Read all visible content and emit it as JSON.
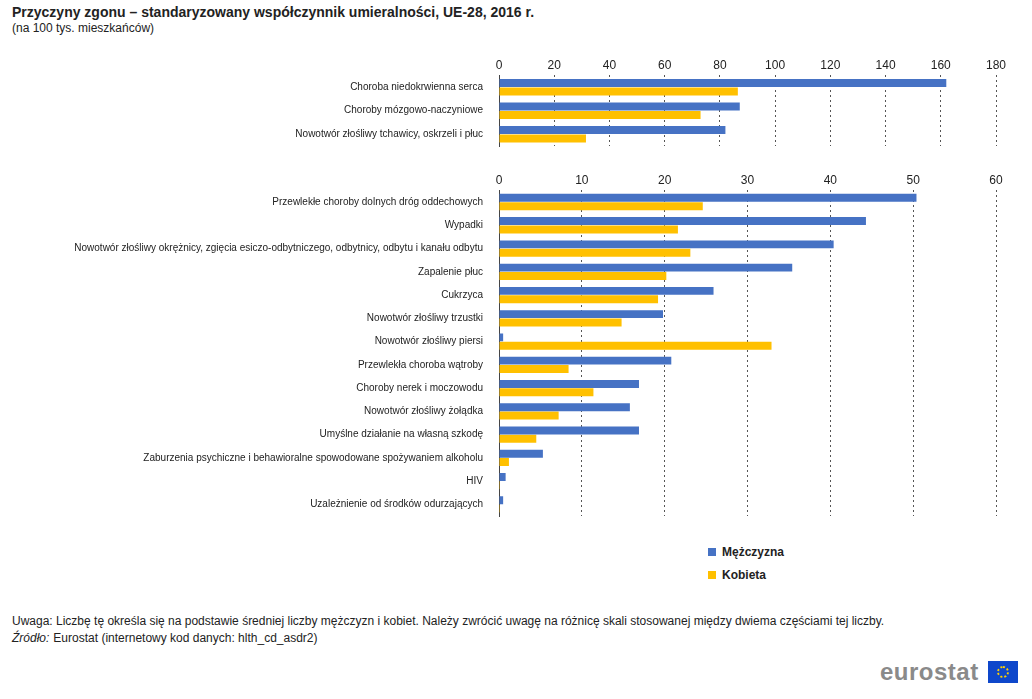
{
  "title": "Przyczyny zgonu – standaryzowany współczynnik umieralności, UE-28, 2016 r.",
  "subtitle": "(na 100 tys. mieszkańców)",
  "note": "Uwaga: Liczbę tę określa się na podstawie średniej liczby mężczyzn i kobiet. Należy zwrócić uwagę na różnicę skali stosowanej między dwiema częściami tej liczby.",
  "source_label": "Źródło:",
  "source": "Eurostat (internetowy kod danych: hlth_cd_asdr2)",
  "logo": "eurostat",
  "chart_data": [
    {
      "type": "bar",
      "orientation": "horizontal",
      "grid": true,
      "categories": [
        "Choroba niedokrwienna serca",
        "Choroby mózgowo-naczyniowe",
        "Nowotwór złośliwy tchawicy, oskrzeli i płuc"
      ],
      "series": [
        {
          "name": "Mężczyzna",
          "color": "#4672c4",
          "values": [
            162,
            87.2,
            82
          ]
        },
        {
          "name": "Kobieta",
          "color": "#ffc000",
          "values": [
            86.5,
            73,
            31.5
          ]
        }
      ],
      "xlim": [
        0,
        180
      ],
      "xticks": [
        0,
        20,
        40,
        60,
        80,
        100,
        120,
        140,
        160,
        180
      ]
    },
    {
      "type": "bar",
      "orientation": "horizontal",
      "grid": true,
      "legend": "bottom",
      "categories": [
        "Przewlekłe choroby dolnych dróg oddechowych",
        "Wypadki",
        "Nowotwór złośliwy okrężnicy, zgięcia esiczo-odbytniczego, odbytnicy, odbytu i kanału odbytu",
        "Zapalenie płuc",
        "Cukrzyca",
        "Nowotwór złośliwy trzustki",
        "Nowotwór złośliwy piersi",
        "Przewlekła choroba wątroby",
        "Choroby nerek i moczowodu",
        "Nowotwór złośliwy żołądka",
        "Umyślne działanie na własną szkodę",
        "Zaburzenia psychiczne i behawioralne spowodowane spożywaniem alkoholu",
        "HIV",
        "Uzależnienie od środków odurzających"
      ],
      "series": [
        {
          "name": "Mężczyzna",
          "color": "#4672c4",
          "values": [
            50.4,
            44.3,
            40.4,
            35.4,
            25.9,
            19.8,
            0.5,
            20.8,
            16.9,
            15.8,
            16.9,
            5.3,
            0.8,
            0.5
          ]
        },
        {
          "name": "Kobieta",
          "color": "#ffc000",
          "values": [
            24.6,
            21.6,
            23.1,
            20.2,
            19.2,
            14.8,
            32.9,
            8.4,
            11.4,
            7.2,
            4.5,
            1.2,
            0.1,
            0.1
          ]
        }
      ],
      "xlim": [
        0,
        60
      ],
      "xticks": [
        0,
        10,
        20,
        30,
        40,
        50,
        60
      ]
    }
  ]
}
